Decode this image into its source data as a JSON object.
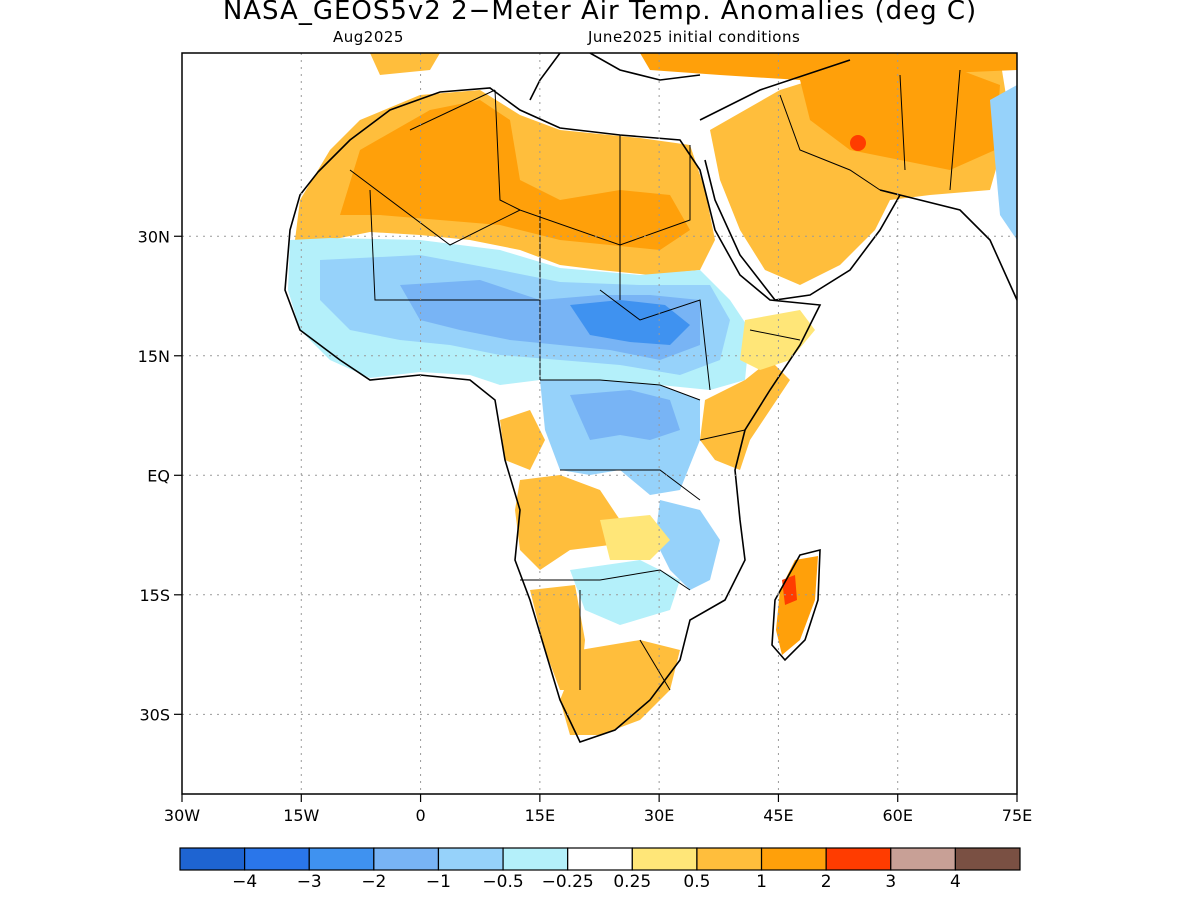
{
  "title": "NASA_GEOS5v2 2−Meter Air Temp. Anomalies (deg C)",
  "subtitle_left": "Aug2025",
  "subtitle_right": "June2025 initial conditions",
  "map": {
    "lon_range": [
      -30,
      75
    ],
    "lat_range": [
      -40,
      53
    ],
    "lon_ticks": [
      {
        "value": -30,
        "label": "30W"
      },
      {
        "value": -15,
        "label": "15W"
      },
      {
        "value": 0,
        "label": "0"
      },
      {
        "value": 15,
        "label": "15E"
      },
      {
        "value": 30,
        "label": "30E"
      },
      {
        "value": 45,
        "label": "45E"
      },
      {
        "value": 60,
        "label": "60E"
      },
      {
        "value": 75,
        "label": "75E"
      }
    ],
    "lat_ticks": [
      {
        "value": 30,
        "label": "30N"
      },
      {
        "value": 15,
        "label": "15N"
      },
      {
        "value": 0,
        "label": "EQ"
      },
      {
        "value": -15,
        "label": "15S"
      },
      {
        "value": -30,
        "label": "30S"
      }
    ],
    "grid": true
  },
  "colorbar": {
    "colors": [
      "#1e64d2",
      "#2a76ea",
      "#3f92f0",
      "#78b4f5",
      "#96d2fa",
      "#b4f0fa",
      "#ffffff",
      "#ffe678",
      "#ffbe3c",
      "#ffa00a",
      "#ff3c00",
      "#c8a096",
      "#7a5043"
    ],
    "labels": [
      "−4",
      "−3",
      "−2",
      "−1",
      "−0.5",
      "−0.25",
      "0.25",
      "0.5",
      "1",
      "2",
      "3",
      "4"
    ]
  }
}
